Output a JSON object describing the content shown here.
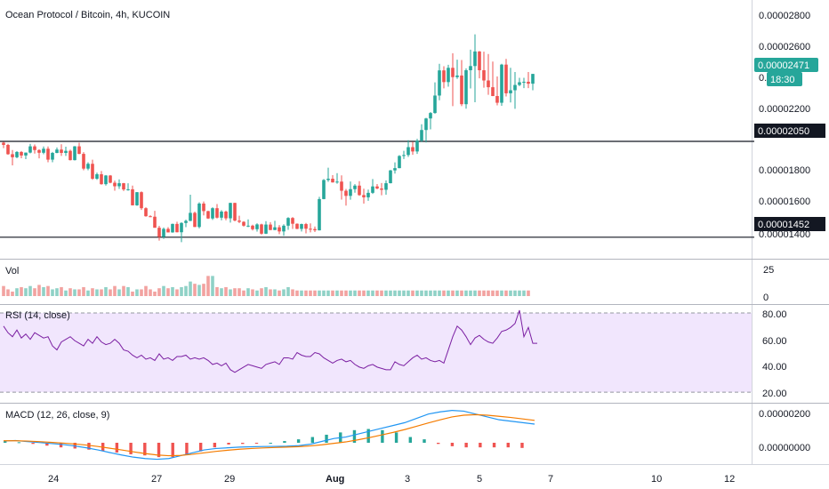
{
  "header": {
    "title": "Ocean Protocol / Bitcoin, 4h, KUCOIN"
  },
  "colors": {
    "up": "#26a69a",
    "down": "#ef5350",
    "vol_up": "#8fd1c6",
    "vol_down": "#f2a2a0",
    "rsi_line": "#7b1fa2",
    "rsi_band": "#f1e6fd",
    "macd_line": "#2196f3",
    "signal_line": "#f57c00",
    "level_line": "#131722",
    "price_tag": "#26a69a",
    "level_tag": "#131722"
  },
  "price_axis": {
    "ticks": [
      "0.00002800",
      "0.00002600",
      "0.00002200",
      "0.00001800",
      "0.00001600",
      "0.00001400"
    ]
  },
  "price_tags": {
    "last": "0.00002471",
    "countdown": "18:30",
    "resistance": "0.00002050",
    "support": "0.00001452"
  },
  "panes": {
    "volume": {
      "label": "Vol",
      "ticks": [
        "25",
        "0"
      ]
    },
    "rsi": {
      "label": "RSI (14, close)",
      "ticks": [
        "80.00",
        "60.00",
        "40.00",
        "20.00"
      ]
    },
    "macd": {
      "label": "MACD (12, 26, close, 9)",
      "ticks": [
        "0.00000200",
        "0.00000000"
      ]
    }
  },
  "time_axis": {
    "labels": [
      "24",
      "27",
      "29",
      "Aug",
      "3",
      "5",
      "7",
      "10",
      "12"
    ]
  },
  "chart_data": [
    {
      "type": "candlestick",
      "title": "Ocean Protocol / Bitcoin, 4h, KUCOIN",
      "ylim": [
        1.34e-05,
        2.91e-05
      ],
      "horizontal_levels": [
        2.05e-05,
        1.452e-05
      ],
      "ohlc": [
        [
          20420,
          20470,
          20080,
          20280
        ],
        [
          20280,
          20350,
          19660,
          19700
        ],
        [
          19700,
          19960,
          19000,
          19510
        ],
        [
          19510,
          19890,
          19450,
          19840
        ],
        [
          19840,
          19900,
          19450,
          19620
        ],
        [
          19620,
          19800,
          19390,
          19800
        ],
        [
          19800,
          20350,
          19750,
          20190
        ],
        [
          20190,
          20310,
          19740,
          19960
        ],
        [
          19960,
          20010,
          19440,
          19790
        ],
        [
          19790,
          20180,
          19700,
          20040
        ],
        [
          20040,
          20180,
          19200,
          19360
        ],
        [
          19360,
          19840,
          19200,
          19780
        ],
        [
          19780,
          20120,
          19760,
          19990
        ],
        [
          19990,
          20320,
          19590,
          19780
        ],
        [
          19780,
          20170,
          19590,
          19910
        ],
        [
          19910,
          19990,
          19310,
          19330
        ],
        [
          19330,
          20210,
          19310,
          20190
        ],
        [
          20190,
          20420,
          19700,
          19720
        ],
        [
          19720,
          19830,
          18700,
          18800
        ],
        [
          18800,
          19200,
          18700,
          19100
        ],
        [
          19100,
          19360,
          18100,
          18170
        ],
        [
          18170,
          18550,
          18100,
          18450
        ],
        [
          18450,
          18650,
          17800,
          17830
        ],
        [
          17830,
          18400,
          17740,
          18370
        ],
        [
          18370,
          18400,
          17890,
          17920
        ],
        [
          17920,
          18050,
          17420,
          17700
        ],
        [
          17700,
          18130,
          17530,
          17890
        ],
        [
          17890,
          17910,
          17400,
          17500
        ],
        [
          17500,
          17890,
          17420,
          17510
        ],
        [
          17510,
          17740,
          16500,
          16510
        ],
        [
          16510,
          17340,
          16480,
          17330
        ],
        [
          17330,
          17380,
          16220,
          16330
        ],
        [
          16330,
          16390,
          15800,
          15830
        ],
        [
          15830,
          15890,
          15770,
          15800
        ],
        [
          15800,
          16170,
          15110,
          15110
        ],
        [
          15110,
          15230,
          14310,
          14540
        ],
        [
          14540,
          15130,
          14420,
          15040
        ],
        [
          15040,
          15150,
          14820,
          14820
        ],
        [
          14820,
          15370,
          14800,
          15350
        ],
        [
          15350,
          15490,
          14820,
          14830
        ],
        [
          14830,
          15450,
          14210,
          15410
        ],
        [
          15410,
          15620,
          15150,
          15540
        ],
        [
          15540,
          17170,
          15520,
          16040
        ],
        [
          16040,
          16120,
          15150,
          15160
        ],
        [
          15160,
          16700,
          15070,
          16620
        ],
        [
          16620,
          16750,
          15880,
          16150
        ],
        [
          16150,
          16170,
          15660,
          15690
        ],
        [
          15690,
          16390,
          15600,
          16330
        ],
        [
          16330,
          16590,
          15690,
          15740
        ],
        [
          15740,
          16210,
          15580,
          16120
        ],
        [
          16120,
          16180,
          15580,
          15700
        ],
        [
          15700,
          16670,
          15430,
          16660
        ],
        [
          16660,
          16670,
          15510,
          15560
        ],
        [
          15560,
          15860,
          15400,
          15480
        ],
        [
          15480,
          15520,
          15180,
          15240
        ],
        [
          15240,
          15630,
          15150,
          15240
        ],
        [
          15240,
          15300,
          14940,
          15020
        ],
        [
          15020,
          15390,
          14870,
          15320
        ],
        [
          15320,
          15360,
          14680,
          14740
        ],
        [
          14740,
          15520,
          14720,
          15310
        ],
        [
          15310,
          15460,
          14960,
          14970
        ],
        [
          14970,
          15540,
          14960,
          15140
        ],
        [
          15140,
          15280,
          14710,
          14880
        ],
        [
          14880,
          15330,
          14610,
          15240
        ],
        [
          15240,
          15770,
          14980,
          15720
        ],
        [
          15720,
          15780,
          15040,
          15360
        ],
        [
          15360,
          15380,
          15020,
          15040
        ],
        [
          15040,
          15370,
          14880,
          15340
        ],
        [
          15340,
          15410,
          14760,
          15050
        ],
        [
          15050,
          15380,
          14820,
          15030
        ],
        [
          15030,
          15190,
          14840,
          14950
        ],
        [
          14950,
          17040,
          14940,
          16900
        ],
        [
          16900,
          18150,
          16890,
          18090
        ],
        [
          18090,
          18860,
          17980,
          18170
        ],
        [
          18170,
          18390,
          17930,
          17940
        ],
        [
          17940,
          18520,
          17860,
          17990
        ],
        [
          17990,
          18380,
          16870,
          17420
        ],
        [
          17420,
          17530,
          16490,
          17100
        ],
        [
          17100,
          18000,
          16860,
          17520
        ],
        [
          17520,
          17830,
          17300,
          17740
        ],
        [
          17740,
          18020,
          17100,
          17150
        ],
        [
          17150,
          17550,
          16620,
          17010
        ],
        [
          17010,
          17490,
          16790,
          17290
        ],
        [
          17290,
          18150,
          17220,
          17690
        ],
        [
          17690,
          17840,
          17510,
          17560
        ],
        [
          17560,
          17900,
          17140,
          17480
        ],
        [
          17480,
          18070,
          17170,
          17890
        ],
        [
          17890,
          18720,
          17880,
          18690
        ],
        [
          18690,
          19190,
          18490,
          18830
        ],
        [
          18830,
          19640,
          18820,
          19590
        ],
        [
          19590,
          19910,
          19400,
          19650
        ],
        [
          19650,
          20580,
          19530,
          20140
        ],
        [
          20140,
          20480,
          19660,
          19870
        ],
        [
          19870,
          20660,
          19720,
          20550
        ],
        [
          20550,
          21570,
          20450,
          21210
        ],
        [
          21210,
          21970,
          20430,
          21930
        ],
        [
          21930,
          22330,
          21250,
          22270
        ],
        [
          22270,
          24180,
          22230,
          23360
        ],
        [
          23360,
          25340,
          23070,
          24930
        ],
        [
          24930,
          25190,
          23810,
          24200
        ],
        [
          24200,
          25280,
          23910,
          25090
        ],
        [
          25090,
          26000,
          22700,
          24510
        ],
        [
          24510,
          25600,
          24400,
          24610
        ],
        [
          24610,
          25580,
          22700,
          22820
        ],
        [
          22820,
          25060,
          22540,
          24940
        ],
        [
          24940,
          26220,
          23800,
          25200
        ],
        [
          25200,
          27180,
          22940,
          26110
        ],
        [
          26110,
          26140,
          24430,
          24940
        ],
        [
          24940,
          26100,
          23850,
          24300
        ],
        [
          24300,
          25950,
          23410,
          23880
        ],
        [
          23880,
          25480,
          23320,
          23330
        ],
        [
          23330,
          24550,
          22750,
          22910
        ],
        [
          22910,
          25340,
          22720,
          25290
        ],
        [
          25290,
          25650,
          23300,
          23500
        ],
        [
          23500,
          25090,
          22930,
          23690
        ],
        [
          23690,
          24830,
          22530,
          24020
        ],
        [
          24020,
          24470,
          23950,
          24190
        ],
        [
          24190,
          24470,
          23820,
          24220
        ],
        [
          24220,
          24830,
          23820,
          24100
        ],
        [
          24100,
          24710,
          23690,
          24710
        ]
      ]
    },
    {
      "type": "bar",
      "name": "Vol",
      "ylim": [
        0,
        31
      ],
      "values": [
        9,
        6,
        4,
        7,
        8,
        7,
        9,
        7,
        10,
        8,
        9,
        6,
        7,
        8,
        5,
        7,
        6,
        6,
        8,
        5,
        7,
        6,
        6,
        8,
        6,
        9,
        6,
        9,
        8,
        4,
        6,
        6,
        9,
        6,
        4,
        7,
        9,
        7,
        8,
        6,
        8,
        9,
        13,
        11,
        10,
        11,
        18,
        18,
        8,
        7,
        8,
        6,
        7,
        7,
        5,
        7,
        6,
        5,
        7,
        8,
        6,
        6,
        5,
        6,
        8,
        6,
        5,
        5,
        5,
        5,
        5,
        5,
        5,
        5,
        5,
        5,
        5,
        5,
        5,
        5,
        5,
        5,
        5,
        5,
        5,
        5,
        5,
        5,
        5,
        5,
        5,
        5,
        5,
        5,
        5,
        5,
        5,
        5,
        5,
        5,
        5,
        5,
        5,
        5,
        5,
        5,
        5,
        5,
        5,
        5,
        5,
        5,
        5,
        5,
        5,
        5,
        5,
        5,
        5
      ]
    },
    {
      "type": "line",
      "name": "RSI (14, close)",
      "ylim": [
        14,
        84
      ],
      "band": [
        20,
        80
      ],
      "values": [
        70,
        65,
        62,
        67,
        61,
        64,
        60,
        65,
        63,
        61,
        62,
        55,
        52,
        58,
        60,
        62,
        59,
        57,
        55,
        60,
        57,
        62,
        58,
        56,
        57,
        60,
        57,
        52,
        51,
        48,
        46,
        48,
        45,
        46,
        44,
        49,
        45,
        46,
        44,
        47,
        47,
        48,
        45,
        46,
        45,
        46,
        44,
        41,
        42,
        40,
        42,
        37,
        35,
        37,
        39,
        41,
        40,
        39,
        38,
        41,
        42,
        43,
        41,
        46,
        46,
        45,
        50,
        48,
        47,
        47,
        50,
        49,
        46,
        44,
        42,
        44,
        45,
        43,
        44,
        41,
        39,
        38,
        40,
        41,
        39,
        38,
        37,
        37,
        43,
        41,
        40,
        43,
        46,
        48,
        45,
        46,
        44,
        43,
        44,
        42,
        52,
        62,
        70,
        67,
        62,
        56,
        61,
        63,
        60,
        58,
        57,
        61,
        66,
        67,
        69,
        72,
        82,
        62,
        69,
        57,
        57
      ]
    },
    {
      "type": "line",
      "name": "MACD (12, 26, close, 9)",
      "ylim": [
        -1.3e-07,
        2.6e-07
      ],
      "series": [
        {
          "values": [
            1.2e-08,
            1.6e-08,
            8e-09,
            2e-09,
            -5e-09,
            -1.2e-08,
            -2.2e-08,
            -3.5e-08,
            -5e-08,
            -6.8e-08,
            -8.5e-08,
            -1e-07,
            -1.1e-07,
            -1.15e-07,
            -1.1e-07,
            -9e-08,
            -7e-08,
            -5e-08,
            -4e-08,
            -3.5e-08,
            -3e-08,
            -2.8e-08,
            -2.6e-08,
            -2.5e-08,
            -2.4e-08,
            -2e-08,
            -1e-08,
            1e-08,
            3e-08,
            4e-08,
            6e-08,
            8e-08,
            1e-07,
            1.2e-07,
            1.4e-07,
            1.7e-07,
            2e-07,
            2.15e-07,
            2.25e-07,
            2.2e-07,
            2e-07,
            1.8e-07,
            1.6e-07,
            1.5e-07,
            1.4e-07,
            1.3e-07
          ]
        },
        {
          "values": [
            1.4e-08,
            1.4e-08,
            1.2e-08,
            8e-09,
            3e-09,
            -2e-09,
            -8e-09,
            -1.6e-08,
            -2.6e-08,
            -3.8e-08,
            -5e-08,
            -6.3e-08,
            -7.5e-08,
            -8.5e-08,
            -9e-08,
            -8.8e-08,
            -8e-08,
            -7e-08,
            -6e-08,
            -5.2e-08,
            -4.5e-08,
            -4e-08,
            -3.6e-08,
            -3.3e-08,
            -3e-08,
            -2.7e-08,
            -2.2e-08,
            -1.4e-08,
            -4e-09,
            6e-09,
            2e-08,
            3.6e-08,
            5.4e-08,
            7.2e-08,
            9.2e-08,
            1.15e-07,
            1.38e-07,
            1.6e-07,
            1.8e-07,
            1.92e-07,
            1.96e-07,
            1.92e-07,
            1.84e-07,
            1.76e-07,
            1.66e-07,
            1.56e-07
          ]
        }
      ],
      "histogram": [
        3,
        1,
        -2,
        -5,
        -8,
        -10,
        -12,
        -14,
        -17,
        -20,
        -22,
        -25,
        -25,
        -20,
        -15,
        -8,
        -3,
        -2,
        -1,
        0,
        3,
        6,
        10,
        14,
        18,
        22,
        24,
        22,
        18,
        10,
        6,
        -2,
        -6,
        -8,
        -8,
        -8,
        -8,
        -9
      ]
    }
  ]
}
